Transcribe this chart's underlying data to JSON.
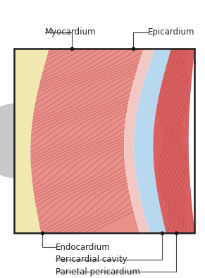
{
  "background_color": "#ffffff",
  "box_border": "#1a1a1a",
  "label_myocardium": "Myocardium",
  "label_epicardium": "Epicardium",
  "label_endocardium": "Endocardium",
  "label_pericardial": "Pericardial cavity",
  "label_parietal": "Parietal pericardium",
  "endocardium_color": "#f0e8b0",
  "myocardium_color": "#e8908a",
  "myocardium_light": "#f0b0aa",
  "myocardium_dark": "#c05050",
  "epicardium_color": "#f2c8c4",
  "pericardial_color": "#b8d8f0",
  "parietal_color": "#d96060",
  "parietal_dark": "#b84040",
  "dot_color": "#111111",
  "dot_size": 4,
  "line_color": "#444444",
  "font_size": 8.5,
  "fig_width": 2.91,
  "fig_height": 3.95,
  "dpi": 100
}
